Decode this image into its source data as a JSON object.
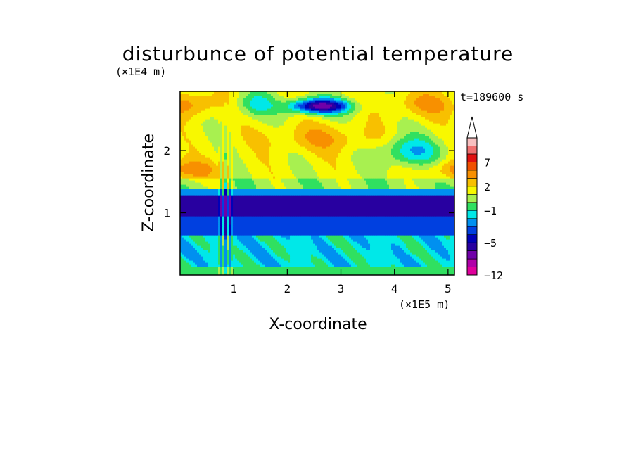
{
  "chart_data": {
    "type": "heatmap",
    "title": "disturbunce of potential temperature",
    "xlabel": "X-coordinate",
    "ylabel": "Z-coordinate",
    "x_unit": "(×1E5 m)",
    "y_unit": "(×1E4 m)",
    "time_label": "t=189600 s",
    "xlim": [
      0,
      5.12
    ],
    "ylim": [
      0,
      2.95
    ],
    "x_ticks": [
      "1",
      "2",
      "3",
      "4",
      "5"
    ],
    "y_ticks": [
      "1",
      "2"
    ],
    "colorbar_tick_labels": [
      "7",
      "2",
      "−1",
      "−5",
      "−12"
    ],
    "levels": [
      {
        "lo": -12,
        "hi": -10,
        "color": "#e0009c"
      },
      {
        "lo": -10,
        "hi": -8,
        "color": "#b000a8"
      },
      {
        "lo": -8,
        "hi": -6,
        "color": "#7000a8"
      },
      {
        "lo": -6,
        "hi": -5,
        "color": "#2800a0"
      },
      {
        "lo": -5,
        "hi": -4,
        "color": "#0000b8"
      },
      {
        "lo": -4,
        "hi": -3,
        "color": "#0040e0"
      },
      {
        "lo": -3,
        "hi": -2,
        "color": "#0090f0"
      },
      {
        "lo": -2,
        "hi": -1,
        "color": "#00e8e8"
      },
      {
        "lo": -1,
        "hi": 0,
        "color": "#30e060"
      },
      {
        "lo": 0,
        "hi": 1,
        "color": "#a8f050"
      },
      {
        "lo": 1,
        "hi": 2,
        "color": "#f8f800"
      },
      {
        "lo": 2,
        "hi": 3,
        "color": "#f8c000"
      },
      {
        "lo": 3,
        "hi": 5,
        "color": "#f89000"
      },
      {
        "lo": 5,
        "hi": 7,
        "color": "#f05000"
      },
      {
        "lo": 7,
        "hi": 9,
        "color": "#e01010"
      },
      {
        "lo": 9,
        "hi": 11,
        "color": "#f07070"
      },
      {
        "lo": 11,
        "hi": 13,
        "color": "#f8c0c0"
      }
    ]
  }
}
